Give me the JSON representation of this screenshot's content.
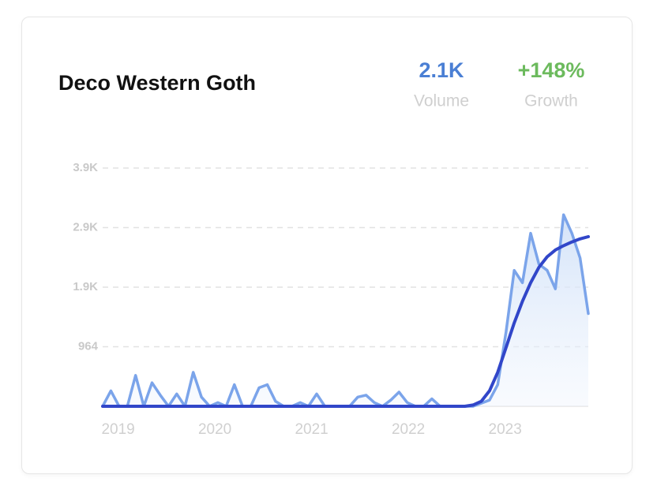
{
  "chart_data": {
    "type": "line",
    "title": "Deco Western Goth",
    "stats": [
      {
        "value": "2.1K",
        "label": "Volume",
        "color": "#4a7fd4"
      },
      {
        "value": "+148%",
        "label": "Growth",
        "color": "#6cba5d"
      }
    ],
    "series": [
      {
        "name": "Volume",
        "color": "#7ba4ea",
        "values": [
          0,
          250,
          0,
          0,
          500,
          0,
          380,
          180,
          0,
          200,
          0,
          550,
          150,
          0,
          60,
          0,
          350,
          0,
          0,
          300,
          350,
          80,
          0,
          0,
          60,
          0,
          200,
          0,
          0,
          0,
          0,
          150,
          180,
          60,
          0,
          100,
          230,
          60,
          0,
          0,
          120,
          0,
          0,
          0,
          0,
          0,
          50,
          100,
          350,
          1200,
          2200,
          2000,
          2800,
          2300,
          2200,
          1900,
          3100,
          2800,
          2400,
          1500
        ]
      },
      {
        "name": "Trend",
        "color": "#3146c9",
        "values": [
          0,
          0,
          0,
          0,
          0,
          0,
          0,
          0,
          0,
          0,
          0,
          0,
          0,
          0,
          0,
          0,
          0,
          0,
          0,
          0,
          0,
          0,
          0,
          0,
          0,
          0,
          0,
          0,
          0,
          0,
          0,
          0,
          0,
          0,
          0,
          0,
          0,
          0,
          0,
          0,
          0,
          0,
          0,
          0,
          0,
          20,
          80,
          250,
          550,
          950,
          1350,
          1700,
          2000,
          2250,
          2420,
          2530,
          2600,
          2660,
          2710,
          2745
        ]
      }
    ],
    "xlim": [
      2018.84,
      2023.86
    ],
    "xticks": [
      2019,
      2020,
      2021,
      2022,
      2023
    ],
    "ylim": [
      0,
      3856
    ],
    "yticks": [
      964,
      {
        "value": 1928,
        "label": "1.9K"
      },
      {
        "value": 2892,
        "label": "2.9K"
      },
      {
        "value": 3856,
        "label": "3.9K"
      }
    ],
    "grid": true
  }
}
